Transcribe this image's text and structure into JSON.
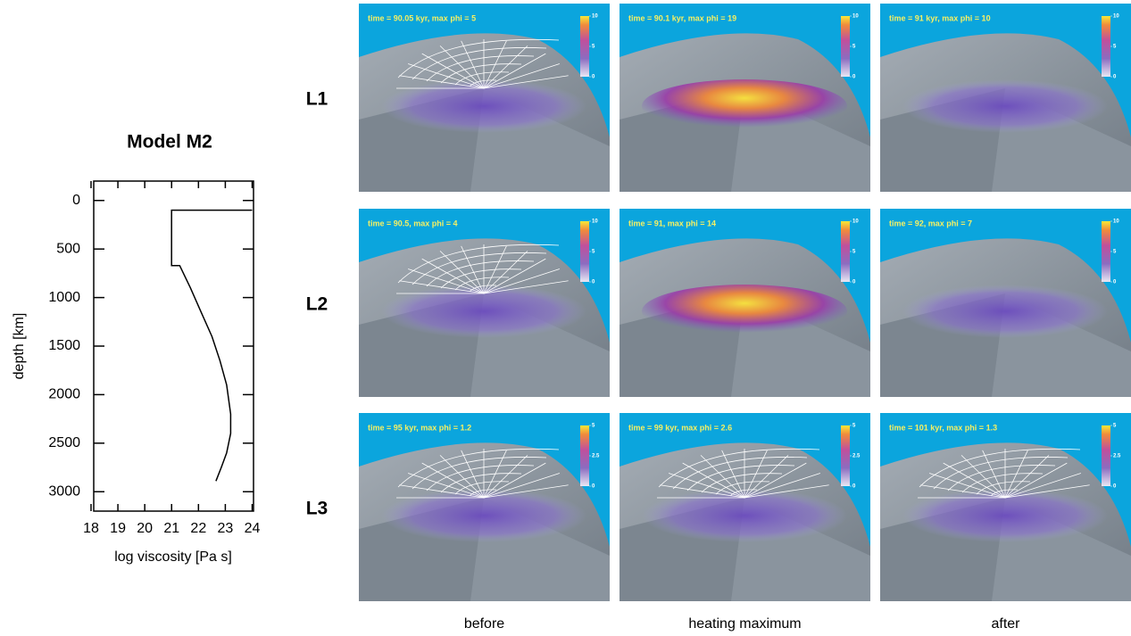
{
  "chart_data": {
    "type": "line",
    "title": "Model M2",
    "x_label": "log viscosity [Pa s]",
    "y_label": "depth [km]",
    "x": [
      24,
      21,
      21,
      21.3,
      21.7,
      22.1,
      22.5,
      22.8,
      23.05,
      23.2,
      23.2,
      23.05,
      22.85,
      22.65
    ],
    "values": [
      100,
      100,
      670,
      670,
      900,
      1150,
      1400,
      1650,
      1900,
      2200,
      2400,
      2600,
      2750,
      2890
    ],
    "color": "#000000",
    "xlim": [
      18.1,
      24.05
    ],
    "ylim": [
      3200,
      -200
    ],
    "xticks": [
      18,
      19,
      20,
      21,
      22,
      23,
      24
    ],
    "yticks": [
      0,
      500,
      1000,
      1500,
      2000,
      2500,
      3000
    ]
  },
  "row_labels": [
    "L1",
    "L2",
    "L3"
  ],
  "column_labels": [
    "before",
    "heating maximum",
    "after"
  ],
  "panels": [
    [
      {
        "caption": "time = 90.05 kyr, max phi = 5",
        "colorbar_ticks": [
          0,
          5,
          10
        ],
        "mesh": true
      },
      {
        "caption": "time = 90.1 kyr, max phi = 19",
        "colorbar_ticks": [
          0,
          5,
          10
        ],
        "mesh": false
      },
      {
        "caption": "time = 91 kyr, max phi = 10",
        "colorbar_ticks": [
          0,
          5,
          10
        ],
        "mesh": false
      }
    ],
    [
      {
        "caption": "time = 90.5, max phi = 4",
        "colorbar_ticks": [
          0,
          5,
          10
        ],
        "mesh": true
      },
      {
        "caption": "time = 91, max phi = 14",
        "colorbar_ticks": [
          0,
          5,
          10
        ],
        "mesh": false
      },
      {
        "caption": "time = 92, max phi = 7",
        "colorbar_ticks": [
          0,
          5,
          10
        ],
        "mesh": false
      }
    ],
    [
      {
        "caption": "time = 95 kyr, max phi = 1.2",
        "colorbar_ticks": [
          0,
          2.5,
          5
        ],
        "mesh": true
      },
      {
        "caption": "time = 99 kyr, max phi = 2.6",
        "colorbar_ticks": [
          0,
          2.5,
          5
        ],
        "mesh": true
      },
      {
        "caption": "time = 101 kyr, max phi = 1.3",
        "colorbar_ticks": [
          0,
          2.5,
          5
        ],
        "mesh": true
      }
    ]
  ]
}
